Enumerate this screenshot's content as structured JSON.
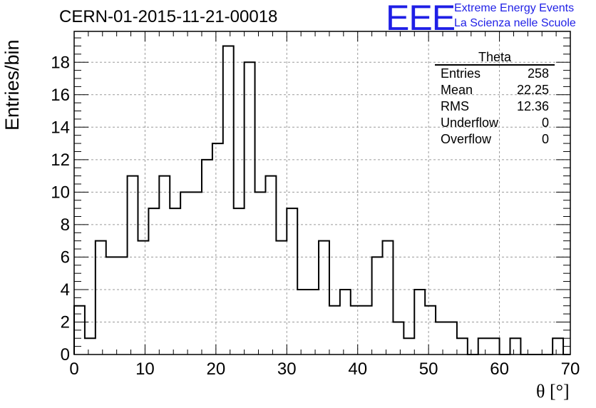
{
  "header": {
    "title": "CERN-01-2015-11-21-00018",
    "logo_text": "EEE",
    "org_line1": "Extreme Energy Events",
    "org_line2": "La Scienza nelle Scuole"
  },
  "stats_box": {
    "title": "Theta",
    "rows": [
      {
        "label": "Entries",
        "value": "258"
      },
      {
        "label": "Mean",
        "value": "22.25"
      },
      {
        "label": "RMS",
        "value": "12.36"
      },
      {
        "label": "Underflow",
        "value": "0"
      },
      {
        "label": "Overflow",
        "value": "0"
      }
    ]
  },
  "colors": {
    "logo": "#1f1fe6",
    "line": "#000000",
    "grid": "#9a9a9a"
  },
  "chart_data": {
    "type": "bar",
    "style": "step-histogram",
    "ylabel": "Entries/bin",
    "xlabel": "θ [°]",
    "xlim": [
      0,
      70
    ],
    "ylim": [
      0,
      19.9
    ],
    "bin_width": 1.5,
    "x_ticks": [
      0,
      10,
      20,
      30,
      40,
      50,
      60,
      70
    ],
    "y_ticks": [
      0,
      2,
      4,
      6,
      8,
      10,
      12,
      14,
      16,
      18
    ],
    "grid": true,
    "values": [
      3,
      1,
      7,
      6,
      6,
      11,
      7,
      9,
      11,
      9,
      10,
      10,
      12,
      13,
      19,
      9,
      18,
      10,
      11,
      7,
      9,
      4,
      4,
      7,
      3,
      4,
      3,
      3,
      6,
      7,
      2,
      1,
      4,
      3,
      2,
      2,
      1,
      0,
      1,
      1,
      0,
      1,
      0,
      0,
      0,
      1,
      0
    ]
  }
}
